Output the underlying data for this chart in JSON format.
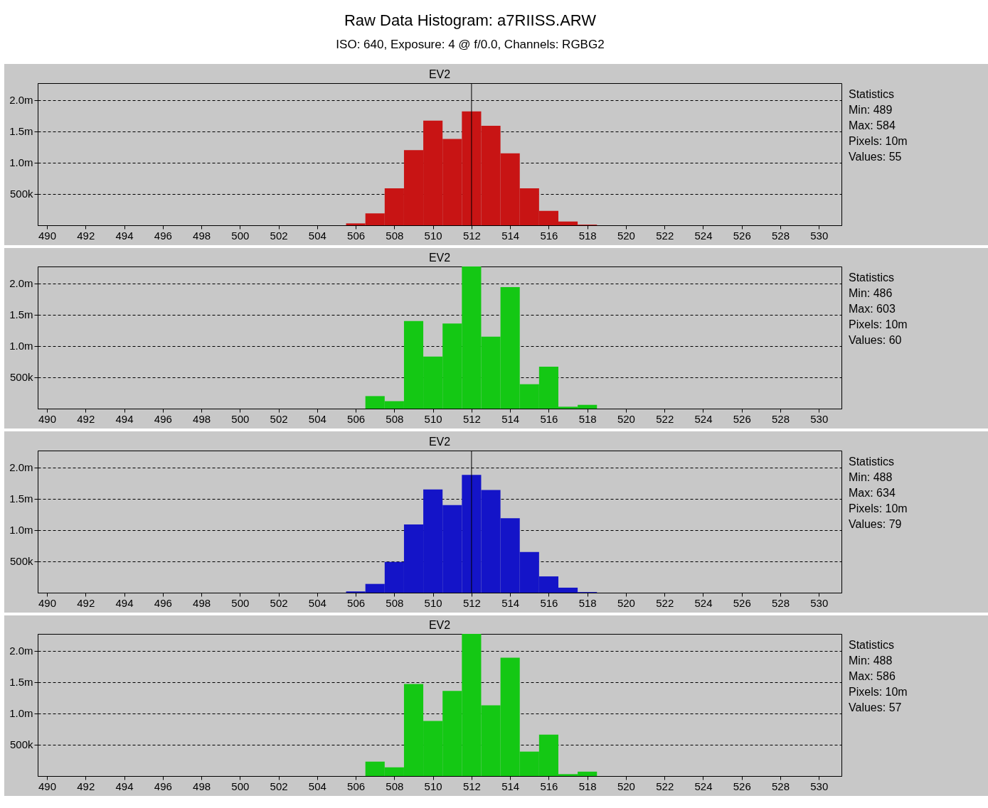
{
  "chart_data": [
    {
      "type": "other",
      "title": "Raw Data Histogram: a7RIISS.ARW",
      "subtitle": "ISO: 640, Exposure: 4 @ f/0.0, Channels: RGBG2"
    },
    {
      "type": "histogram",
      "title": "EV2",
      "color": "#c81414",
      "bins": [
        505.5,
        506.5,
        507.5,
        508.5,
        509.5,
        510.5,
        511.5,
        512.5,
        513.5,
        514.5,
        515.5,
        516.5,
        517.5,
        518.5
      ],
      "values": [
        30000,
        190000,
        590000,
        1200000,
        1670000,
        1380000,
        1820000,
        1590000,
        1150000,
        590000,
        230000,
        60000,
        10000
      ],
      "xlim": [
        489.52,
        531.17
      ],
      "xticks": [
        490,
        492,
        494,
        496,
        498,
        500,
        502,
        504,
        506,
        508,
        510,
        512,
        514,
        516,
        518,
        520,
        522,
        524,
        526,
        528,
        530
      ],
      "ylim": [
        0,
        2270000
      ],
      "yticks": [
        {
          "value": 500000,
          "label": "500k"
        },
        {
          "value": 1000000,
          "label": "1.0m"
        },
        {
          "value": 1500000,
          "label": "1.5m"
        },
        {
          "value": 2000000,
          "label": "2.0m"
        }
      ],
      "grid": "y",
      "ref_lines": [
        {
          "axis": "x",
          "value": 512,
          "color": "#000000"
        }
      ],
      "annotations": [
        "Statistics",
        "Min: 489",
        "Max: 584",
        "Pixels: 10m",
        "Values: 55"
      ]
    },
    {
      "type": "histogram",
      "title": "EV2",
      "color": "#14c814",
      "bins": [
        506.5,
        507.5,
        508.5,
        509.5,
        510.5,
        511.5,
        512.5,
        513.5,
        514.5,
        515.5,
        516.5,
        517.5,
        518.5
      ],
      "values": [
        200000,
        120000,
        1400000,
        830000,
        1360000,
        2270000,
        1150000,
        1940000,
        390000,
        670000,
        30000,
        60000
      ],
      "xlim": [
        489.52,
        531.17
      ],
      "xticks": [
        490,
        492,
        494,
        496,
        498,
        500,
        502,
        504,
        506,
        508,
        510,
        512,
        514,
        516,
        518,
        520,
        522,
        524,
        526,
        528,
        530
      ],
      "ylim": [
        0,
        2270000
      ],
      "yticks": [
        {
          "value": 500000,
          "label": "500k"
        },
        {
          "value": 1000000,
          "label": "1.0m"
        },
        {
          "value": 1500000,
          "label": "1.5m"
        },
        {
          "value": 2000000,
          "label": "2.0m"
        }
      ],
      "grid": "y",
      "annotations": [
        "Statistics",
        "Min: 486",
        "Max: 603",
        "Pixels: 10m",
        "Values: 60"
      ]
    },
    {
      "type": "histogram",
      "title": "EV2",
      "color": "#1414c8",
      "bins": [
        505.5,
        506.5,
        507.5,
        508.5,
        509.5,
        510.5,
        511.5,
        512.5,
        513.5,
        514.5,
        515.5,
        516.5,
        517.5,
        518.5
      ],
      "values": [
        20000,
        140000,
        490000,
        1090000,
        1650000,
        1400000,
        1880000,
        1640000,
        1190000,
        650000,
        260000,
        80000,
        10000
      ],
      "xlim": [
        489.52,
        531.17
      ],
      "xticks": [
        490,
        492,
        494,
        496,
        498,
        500,
        502,
        504,
        506,
        508,
        510,
        512,
        514,
        516,
        518,
        520,
        522,
        524,
        526,
        528,
        530
      ],
      "ylim": [
        0,
        2270000
      ],
      "yticks": [
        {
          "value": 500000,
          "label": "500k"
        },
        {
          "value": 1000000,
          "label": "1.0m"
        },
        {
          "value": 1500000,
          "label": "1.5m"
        },
        {
          "value": 2000000,
          "label": "2.0m"
        }
      ],
      "grid": "y",
      "ref_lines": [
        {
          "axis": "x",
          "value": 512,
          "color": "#000000"
        }
      ],
      "annotations": [
        "Statistics",
        "Min: 488",
        "Max: 634",
        "Pixels: 10m",
        "Values: 79"
      ]
    },
    {
      "type": "histogram",
      "title": "EV2",
      "color": "#14c814",
      "bins": [
        506.5,
        507.5,
        508.5,
        509.5,
        510.5,
        511.5,
        512.5,
        513.5,
        514.5,
        515.5,
        516.5,
        517.5,
        518.5
      ],
      "values": [
        230000,
        140000,
        1470000,
        880000,
        1360000,
        2270000,
        1130000,
        1890000,
        390000,
        660000,
        30000,
        70000
      ],
      "xlim": [
        489.52,
        531.17
      ],
      "xticks": [
        490,
        492,
        494,
        496,
        498,
        500,
        502,
        504,
        506,
        508,
        510,
        512,
        514,
        516,
        518,
        520,
        522,
        524,
        526,
        528,
        530
      ],
      "ylim": [
        0,
        2270000
      ],
      "yticks": [
        {
          "value": 500000,
          "label": "500k"
        },
        {
          "value": 1000000,
          "label": "1.0m"
        },
        {
          "value": 1500000,
          "label": "1.5m"
        },
        {
          "value": 2000000,
          "label": "2.0m"
        }
      ],
      "grid": "y",
      "annotations": [
        "Statistics",
        "Min: 488",
        "Max: 586",
        "Pixels: 10m",
        "Values: 57"
      ]
    }
  ]
}
